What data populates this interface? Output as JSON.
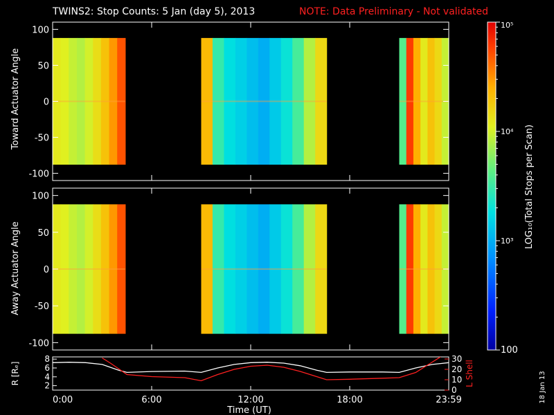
{
  "title": {
    "main": "TWINS2: Stop Counts:  5 Jan (day   5), 2013",
    "note": "NOTE: Data Preliminary - Not validated"
  },
  "colorbar": {
    "label": "LOG₁₀(Total Stops per Scan)",
    "tick_labels": [
      "10⁵",
      "10⁴",
      "10³",
      "100"
    ]
  },
  "footer": {
    "date_stamp": "18 Jan 13"
  },
  "chart_data": [
    {
      "type": "heatmap",
      "panel": "top",
      "ylabel": "Toward Actuator Angle",
      "y_ticks": [
        100,
        50,
        0,
        -50,
        -100
      ],
      "ylim": [
        -110,
        110
      ],
      "xlim": [
        0,
        24
      ],
      "data_angle_range": [
        -88,
        88
      ],
      "color_scale": "log",
      "zlim": [
        100,
        100000
      ],
      "blocks": [
        {
          "start_hr": 0.0,
          "end_hr": 4.4,
          "counts": [
            12000,
            11000,
            9000,
            8000,
            10000,
            14000,
            20000,
            30000,
            50000
          ]
        },
        {
          "start_hr": 9.0,
          "end_hr": 16.6,
          "counts": [
            22000,
            3000,
            1800,
            1500,
            1200,
            1000,
            1400,
            2000,
            3500,
            8000,
            15000
          ]
        },
        {
          "start_hr": 21.0,
          "end_hr": 24.0,
          "counts": [
            4000,
            60000,
            25000,
            12000,
            20000,
            15000,
            9000
          ]
        }
      ]
    },
    {
      "type": "heatmap",
      "panel": "middle",
      "ylabel": "Away Actuator Angle",
      "y_ticks": [
        100,
        50,
        0,
        -50,
        -100
      ],
      "ylim": [
        -110,
        110
      ],
      "xlim": [
        0,
        24
      ],
      "data_angle_range": [
        -88,
        88
      ],
      "color_scale": "log",
      "zlim": [
        100,
        100000
      ],
      "blocks": [
        {
          "start_hr": 0.0,
          "end_hr": 4.4,
          "counts": [
            12000,
            11000,
            9000,
            8000,
            10000,
            14000,
            20000,
            30000,
            50000
          ]
        },
        {
          "start_hr": 9.0,
          "end_hr": 16.6,
          "counts": [
            22000,
            3000,
            1800,
            1500,
            1200,
            1000,
            1400,
            2000,
            3500,
            8000,
            15000
          ]
        },
        {
          "start_hr": 21.0,
          "end_hr": 24.0,
          "counts": [
            4000,
            60000,
            25000,
            12000,
            20000,
            15000,
            9000
          ]
        }
      ]
    },
    {
      "type": "line",
      "panel": "bottom",
      "xlabel": "Time (UT)",
      "x_tick_labels": [
        "0:00",
        "6:00",
        "12:00",
        "18:00",
        "23:59"
      ],
      "x_tick_hours": [
        0,
        6,
        12,
        18,
        24
      ],
      "xlim": [
        0,
        24
      ],
      "ylabel_left": "R [Rₑ]",
      "left_ticks": [
        2,
        4,
        6,
        8
      ],
      "left_ylim": [
        1,
        8.5
      ],
      "ylabel_right": "L Shell",
      "right_ticks": [
        0,
        10,
        20,
        30
      ],
      "right_ylim": [
        0,
        32
      ],
      "series": [
        {
          "name": "R [Rₑ]",
          "color": "#ffffff",
          "axis": "left",
          "x": [
            0,
            1,
            2,
            3,
            4,
            4.5,
            6,
            8,
            9,
            10,
            11,
            12,
            13,
            14,
            15,
            16,
            16.6,
            18,
            20,
            21,
            22,
            23,
            24
          ],
          "y": [
            7.2,
            7.3,
            7.2,
            6.8,
            5.5,
            5.0,
            5.2,
            5.3,
            5.0,
            6.0,
            6.8,
            7.2,
            7.3,
            7.1,
            6.5,
            5.5,
            5.0,
            5.1,
            5.1,
            5.0,
            6.0,
            6.8,
            7.2
          ]
        },
        {
          "name": "L Shell",
          "color": "#ff2020",
          "axis": "right",
          "x": [
            3.0,
            3.5,
            4.5,
            6,
            8,
            9,
            10,
            11,
            12,
            13,
            14,
            15,
            16,
            16.6,
            18,
            20,
            21,
            22,
            23,
            23.5
          ],
          "y": [
            31,
            26,
            15,
            13,
            12,
            9,
            15,
            20,
            23,
            24,
            22,
            18,
            13,
            10,
            10.5,
            11.5,
            12,
            17,
            27,
            32
          ]
        }
      ]
    }
  ]
}
